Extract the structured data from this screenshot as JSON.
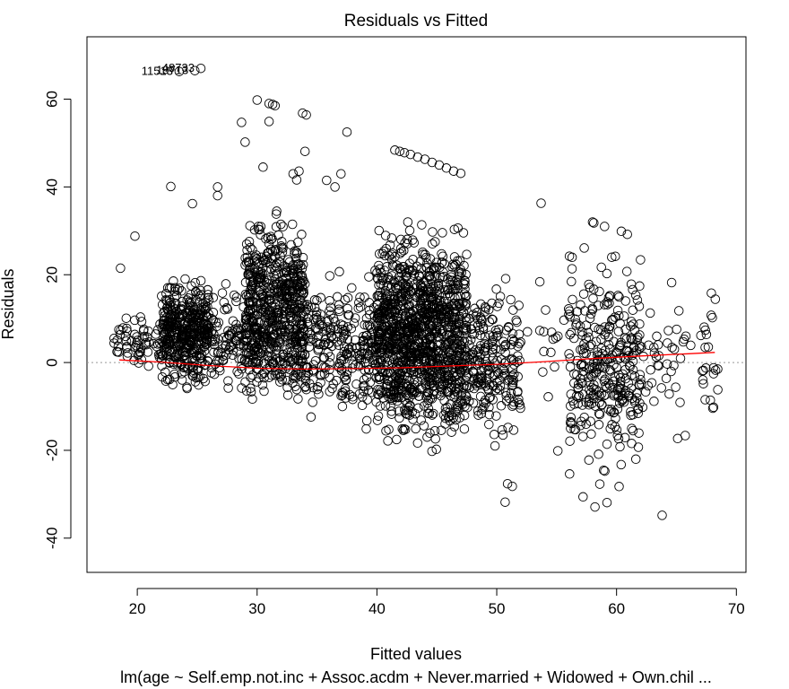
{
  "chart_data": {
    "type": "scatter",
    "title": "Residuals vs Fitted",
    "xlabel": "Fitted values",
    "ylabel": "Residuals",
    "subtitle": "lm(age ~ Self.emp.not.inc + Assoc.acdm + Never.married + Widowed + Own.chil ...",
    "xlim": [
      15.8,
      70.8
    ],
    "ylim": [
      -47.8,
      74.2
    ],
    "x_ticks": [
      20,
      30,
      40,
      50,
      60,
      70
    ],
    "y_ticks": [
      -40,
      -20,
      0,
      20,
      40,
      60
    ],
    "x_tick_labels": [
      "20",
      "30",
      "40",
      "50",
      "60",
      "70"
    ],
    "y_tick_labels": [
      "-40",
      "-20",
      "0",
      "20",
      "40",
      "60"
    ],
    "reference_line": {
      "y": 0,
      "style": "dotted",
      "color": "#999999"
    },
    "point_style": {
      "shape": "open-circle",
      "color": "#000000"
    },
    "outlier_labels": [
      {
        "text": "11513",
        "x": 23.5,
        "y": 66.3
      },
      {
        "text": "19713",
        "x": 24.8,
        "y": 66.5
      },
      {
        "text": "48733",
        "x": 25.3,
        "y": 67.0
      }
    ],
    "clusters": [
      {
        "x_range": [
          22.0,
          26.0
        ],
        "y_range": [
          -8.0,
          22.0
        ],
        "count": 420
      },
      {
        "x_range": [
          18.0,
          22.0
        ],
        "y_range": [
          -3.0,
          12.0
        ],
        "count": 60
      },
      {
        "x_range": [
          26.0,
          29.0
        ],
        "y_range": [
          -10.0,
          20.0
        ],
        "count": 90
      },
      {
        "x_range": [
          29.0,
          34.0
        ],
        "y_range": [
          -16.0,
          38.0
        ],
        "count": 650
      },
      {
        "x_range": [
          34.0,
          40.0
        ],
        "y_range": [
          -18.0,
          25.0
        ],
        "count": 260
      },
      {
        "x_range": [
          40.0,
          47.5
        ],
        "y_range": [
          -24.0,
          36.0
        ],
        "count": 1200
      },
      {
        "x_range": [
          47.5,
          52.0
        ],
        "y_range": [
          -22.0,
          22.0
        ],
        "count": 220
      },
      {
        "x_range": [
          52.0,
          56.0
        ],
        "y_range": [
          -8.0,
          20.0
        ],
        "count": 12
      },
      {
        "x_range": [
          56.0,
          62.0
        ],
        "y_range": [
          -30.0,
          28.0
        ],
        "count": 320
      },
      {
        "x_range": [
          62.0,
          68.5
        ],
        "y_range": [
          -18.0,
          18.0
        ],
        "count": 60
      }
    ],
    "extreme_points": [
      {
        "x": 18.6,
        "y": 21.5
      },
      {
        "x": 19.8,
        "y": 28.8
      },
      {
        "x": 22.8,
        "y": 40.1
      },
      {
        "x": 24.6,
        "y": 36.2
      },
      {
        "x": 26.7,
        "y": 40.0
      },
      {
        "x": 26.7,
        "y": 38.0
      },
      {
        "x": 28.7,
        "y": 54.7
      },
      {
        "x": 29.0,
        "y": 50.2
      },
      {
        "x": 30.0,
        "y": 59.8
      },
      {
        "x": 31.0,
        "y": 59.0
      },
      {
        "x": 31.3,
        "y": 58.8
      },
      {
        "x": 31.5,
        "y": 58.5
      },
      {
        "x": 30.5,
        "y": 44.5
      },
      {
        "x": 31.0,
        "y": 54.9
      },
      {
        "x": 33.0,
        "y": 43.0
      },
      {
        "x": 33.5,
        "y": 43.6
      },
      {
        "x": 33.3,
        "y": 41.6
      },
      {
        "x": 33.8,
        "y": 56.8
      },
      {
        "x": 34.1,
        "y": 56.4
      },
      {
        "x": 34.0,
        "y": 48.1
      },
      {
        "x": 35.8,
        "y": 41.5
      },
      {
        "x": 36.5,
        "y": 40.0
      },
      {
        "x": 37.0,
        "y": 43.0
      },
      {
        "x": 37.5,
        "y": 52.5
      },
      {
        "x": 41.5,
        "y": 48.4
      },
      {
        "x": 41.9,
        "y": 48.1
      },
      {
        "x": 42.3,
        "y": 47.8
      },
      {
        "x": 42.8,
        "y": 47.4
      },
      {
        "x": 43.4,
        "y": 46.8
      },
      {
        "x": 44.0,
        "y": 46.3
      },
      {
        "x": 44.6,
        "y": 45.6
      },
      {
        "x": 45.2,
        "y": 45.0
      },
      {
        "x": 45.8,
        "y": 44.3
      },
      {
        "x": 46.4,
        "y": 43.6
      },
      {
        "x": 47.0,
        "y": 43.1
      },
      {
        "x": 50.7,
        "y": -31.8
      },
      {
        "x": 50.9,
        "y": -27.6
      },
      {
        "x": 51.3,
        "y": -28.2
      },
      {
        "x": 53.7,
        "y": 36.3
      },
      {
        "x": 53.6,
        "y": 18.4
      },
      {
        "x": 53.6,
        "y": 7.3
      },
      {
        "x": 54.3,
        "y": -7.8
      },
      {
        "x": 55.1,
        "y": -20.1
      },
      {
        "x": 57.3,
        "y": 26.1
      },
      {
        "x": 58.0,
        "y": 32.0
      },
      {
        "x": 58.1,
        "y": 31.8
      },
      {
        "x": 59.0,
        "y": 31.0
      },
      {
        "x": 59.6,
        "y": 24.0
      },
      {
        "x": 59.9,
        "y": 24.2
      },
      {
        "x": 60.4,
        "y": 29.9
      },
      {
        "x": 60.9,
        "y": 29.2
      },
      {
        "x": 62.0,
        "y": 23.4
      },
      {
        "x": 57.2,
        "y": -30.6
      },
      {
        "x": 58.2,
        "y": -32.9
      },
      {
        "x": 59.2,
        "y": -31.9
      },
      {
        "x": 58.6,
        "y": -27.7
      },
      {
        "x": 63.8,
        "y": -34.8
      },
      {
        "x": 65.1,
        "y": -17.3
      },
      {
        "x": 65.3,
        "y": -9.1
      },
      {
        "x": 65.2,
        "y": 11.8
      },
      {
        "x": 67.5,
        "y": 6.4
      },
      {
        "x": 68.1,
        "y": -1.2
      },
      {
        "x": 64.6,
        "y": 18.2
      }
    ],
    "smoother": {
      "color": "#ff0000",
      "x": [
        18.5,
        22.0,
        26.0,
        30.0,
        34.0,
        38.0,
        42.0,
        46.0,
        50.0,
        54.0,
        58.0,
        62.0,
        66.0,
        68.2
      ],
      "y": [
        0.6,
        0.1,
        -0.7,
        -1.3,
        -1.5,
        -1.4,
        -1.2,
        -0.8,
        -0.4,
        0.2,
        0.9,
        1.5,
        2.0,
        2.3
      ]
    }
  }
}
